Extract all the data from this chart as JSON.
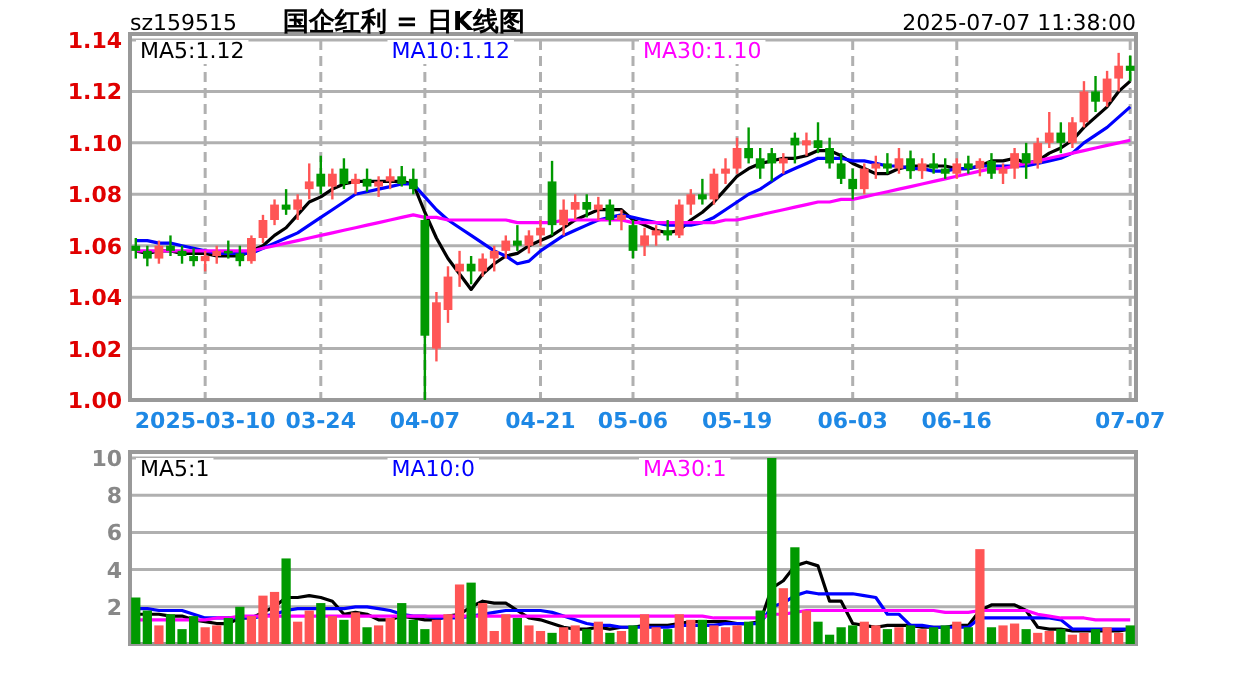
{
  "chart_data": [
    {
      "type": "candlestick",
      "title": "国企红利 = 日K线图",
      "subtitle": "sz159515",
      "annotations": [
        "2025-07-07 11:38:00"
      ],
      "categories": [
        null,
        null,
        null,
        null,
        null,
        null,
        "2025-03-10",
        null,
        null,
        null,
        null,
        null,
        null,
        null,
        null,
        null,
        "03-24",
        null,
        null,
        null,
        null,
        null,
        null,
        null,
        null,
        "04-07",
        null,
        null,
        null,
        null,
        null,
        null,
        null,
        null,
        null,
        "04-21",
        null,
        null,
        null,
        null,
        null,
        null,
        null,
        "05-06",
        null,
        null,
        null,
        null,
        null,
        null,
        null,
        null,
        "05-19",
        null,
        null,
        null,
        null,
        null,
        null,
        null,
        null,
        null,
        "06-03",
        null,
        null,
        null,
        null,
        null,
        null,
        null,
        null,
        "06-16",
        null,
        null,
        null,
        null,
        null,
        null,
        null,
        null,
        null,
        null,
        null,
        null,
        null,
        null,
        "07-07"
      ],
      "ohlc": [
        [
          1.06,
          1.063,
          1.055,
          1.058
        ],
        [
          1.058,
          1.06,
          1.052,
          1.055
        ],
        [
          1.055,
          1.062,
          1.053,
          1.06
        ],
        [
          1.06,
          1.064,
          1.056,
          1.058
        ],
        [
          1.058,
          1.06,
          1.053,
          1.056
        ],
        [
          1.056,
          1.059,
          1.052,
          1.054
        ],
        [
          1.054,
          1.058,
          1.05,
          1.056
        ],
        [
          1.056,
          1.06,
          1.053,
          1.058
        ],
        [
          1.058,
          1.062,
          1.055,
          1.057
        ],
        [
          1.057,
          1.06,
          1.052,
          1.054
        ],
        [
          1.054,
          1.064,
          1.053,
          1.063
        ],
        [
          1.063,
          1.072,
          1.061,
          1.07
        ],
        [
          1.07,
          1.078,
          1.068,
          1.076
        ],
        [
          1.076,
          1.082,
          1.072,
          1.074
        ],
        [
          1.074,
          1.08,
          1.07,
          1.078
        ],
        [
          1.082,
          1.092,
          1.078,
          1.085
        ],
        [
          1.088,
          1.095,
          1.08,
          1.083
        ],
        [
          1.083,
          1.09,
          1.078,
          1.088
        ],
        [
          1.09,
          1.094,
          1.082,
          1.084
        ],
        [
          1.084,
          1.088,
          1.08,
          1.086
        ],
        [
          1.086,
          1.09,
          1.081,
          1.083
        ],
        [
          1.083,
          1.087,
          1.079,
          1.085
        ],
        [
          1.085,
          1.09,
          1.082,
          1.087
        ],
        [
          1.087,
          1.091,
          1.083,
          1.084
        ],
        [
          1.086,
          1.09,
          1.08,
          1.082
        ],
        [
          1.07,
          1.072,
          1.0,
          1.025
        ],
        [
          1.02,
          1.042,
          1.015,
          1.038
        ],
        [
          1.035,
          1.052,
          1.03,
          1.048
        ],
        [
          1.05,
          1.058,
          1.044,
          1.053
        ],
        [
          1.053,
          1.056,
          1.045,
          1.05
        ],
        [
          1.05,
          1.057,
          1.048,
          1.055
        ],
        [
          1.055,
          1.06,
          1.05,
          1.058
        ],
        [
          1.058,
          1.064,
          1.055,
          1.062
        ],
        [
          1.062,
          1.068,
          1.058,
          1.06
        ],
        [
          1.06,
          1.066,
          1.057,
          1.064
        ],
        [
          1.064,
          1.07,
          1.06,
          1.067
        ],
        [
          1.085,
          1.093,
          1.064,
          1.068
        ],
        [
          1.068,
          1.078,
          1.064,
          1.074
        ],
        [
          1.074,
          1.08,
          1.07,
          1.077
        ],
        [
          1.077,
          1.08,
          1.071,
          1.074
        ],
        [
          1.074,
          1.079,
          1.07,
          1.076
        ],
        [
          1.076,
          1.078,
          1.068,
          1.07
        ],
        [
          1.07,
          1.074,
          1.066,
          1.072
        ],
        [
          1.068,
          1.07,
          1.055,
          1.058
        ],
        [
          1.06,
          1.067,
          1.056,
          1.064
        ],
        [
          1.064,
          1.068,
          1.06,
          1.066
        ],
        [
          1.066,
          1.07,
          1.062,
          1.064
        ],
        [
          1.064,
          1.078,
          1.063,
          1.076
        ],
        [
          1.076,
          1.082,
          1.072,
          1.08
        ],
        [
          1.08,
          1.086,
          1.076,
          1.078
        ],
        [
          1.078,
          1.09,
          1.076,
          1.088
        ],
        [
          1.088,
          1.094,
          1.084,
          1.09
        ],
        [
          1.09,
          1.102,
          1.088,
          1.098
        ],
        [
          1.098,
          1.106,
          1.092,
          1.094
        ],
        [
          1.094,
          1.098,
          1.086,
          1.09
        ],
        [
          1.096,
          1.098,
          1.085,
          1.092
        ],
        [
          1.092,
          1.096,
          1.088,
          1.094
        ],
        [
          1.102,
          1.104,
          1.092,
          1.099
        ],
        [
          1.099,
          1.104,
          1.095,
          1.101
        ],
        [
          1.101,
          1.108,
          1.096,
          1.098
        ],
        [
          1.098,
          1.102,
          1.09,
          1.092
        ],
        [
          1.092,
          1.096,
          1.084,
          1.086
        ],
        [
          1.086,
          1.09,
          1.078,
          1.082
        ],
        [
          1.082,
          1.092,
          1.08,
          1.09
        ],
        [
          1.09,
          1.095,
          1.086,
          1.092
        ],
        [
          1.092,
          1.096,
          1.088,
          1.09
        ],
        [
          1.09,
          1.098,
          1.088,
          1.094
        ],
        [
          1.094,
          1.097,
          1.086,
          1.089
        ],
        [
          1.089,
          1.094,
          1.086,
          1.092
        ],
        [
          1.092,
          1.096,
          1.088,
          1.09
        ],
        [
          1.09,
          1.094,
          1.086,
          1.088
        ],
        [
          1.088,
          1.094,
          1.086,
          1.092
        ],
        [
          1.092,
          1.095,
          1.088,
          1.09
        ],
        [
          1.09,
          1.094,
          1.087,
          1.093
        ],
        [
          1.093,
          1.096,
          1.086,
          1.088
        ],
        [
          1.088,
          1.092,
          1.084,
          1.09
        ],
        [
          1.09,
          1.098,
          1.086,
          1.096
        ],
        [
          1.096,
          1.1,
          1.086,
          1.092
        ],
        [
          1.092,
          1.102,
          1.09,
          1.1
        ],
        [
          1.1,
          1.112,
          1.098,
          1.104
        ],
        [
          1.104,
          1.108,
          1.096,
          1.1
        ],
        [
          1.1,
          1.11,
          1.098,
          1.108
        ],
        [
          1.108,
          1.124,
          1.106,
          1.12
        ],
        [
          1.12,
          1.126,
          1.112,
          1.116
        ],
        [
          1.116,
          1.128,
          1.114,
          1.125
        ],
        [
          1.125,
          1.135,
          1.12,
          1.13
        ],
        [
          1.13,
          1.134,
          1.124,
          1.128
        ]
      ],
      "colors": [
        "#009900",
        "#009900",
        "#ff5555",
        "#009900",
        "#009900",
        "#009900",
        "#ff5555",
        "#ff5555",
        "#009900",
        "#009900",
        "#ff5555",
        "#ff5555",
        "#ff5555",
        "#009900",
        "#ff5555",
        "#ff5555",
        "#009900",
        "#ff5555",
        "#009900",
        "#ff5555",
        "#009900",
        "#ff5555",
        "#ff5555",
        "#009900",
        "#009900",
        "#009900",
        "#ff5555",
        "#ff5555",
        "#ff5555",
        "#009900",
        "#ff5555",
        "#ff5555",
        "#ff5555",
        "#009900",
        "#ff5555",
        "#ff5555",
        "#009900",
        "#ff5555",
        "#ff5555",
        "#009900",
        "#ff5555",
        "#009900",
        "#ff5555",
        "#009900",
        "#ff5555",
        "#ff5555",
        "#009900",
        "#ff5555",
        "#ff5555",
        "#009900",
        "#ff5555",
        "#ff5555",
        "#ff5555",
        "#009900",
        "#009900",
        "#009900",
        "#ff5555",
        "#009900",
        "#ff5555",
        "#009900",
        "#009900",
        "#009900",
        "#009900",
        "#ff5555",
        "#ff5555",
        "#009900",
        "#ff5555",
        "#009900",
        "#ff5555",
        "#009900",
        "#009900",
        "#ff5555",
        "#009900",
        "#ff5555",
        "#009900",
        "#ff5555",
        "#ff5555",
        "#009900",
        "#ff5555",
        "#ff5555",
        "#009900",
        "#ff5555",
        "#ff5555",
        "#009900",
        "#ff5555",
        "#ff5555",
        "#009900"
      ],
      "series": [
        {
          "type": "line",
          "name": "MA5:1.12",
          "color": "#000000",
          "values": [
            1.058,
            1.057,
            1.058,
            1.058,
            1.057,
            1.057,
            1.057,
            1.056,
            1.056,
            1.056,
            1.058,
            1.06,
            1.064,
            1.067,
            1.072,
            1.077,
            1.079,
            1.082,
            1.084,
            1.085,
            1.085,
            1.085,
            1.085,
            1.085,
            1.084,
            1.073,
            1.063,
            1.055,
            1.049,
            1.043,
            1.049,
            1.053,
            1.056,
            1.057,
            1.06,
            1.062,
            1.064,
            1.067,
            1.07,
            1.072,
            1.074,
            1.074,
            1.074,
            1.07,
            1.068,
            1.066,
            1.065,
            1.066,
            1.07,
            1.073,
            1.077,
            1.082,
            1.087,
            1.09,
            1.092,
            1.093,
            1.094,
            1.094,
            1.095,
            1.097,
            1.097,
            1.095,
            1.092,
            1.09,
            1.088,
            1.088,
            1.09,
            1.091,
            1.091,
            1.091,
            1.091,
            1.09,
            1.09,
            1.091,
            1.093,
            1.093,
            1.094,
            1.092,
            1.093,
            1.096,
            1.098,
            1.101,
            1.106,
            1.11,
            1.114,
            1.12,
            1.124
          ]
        },
        {
          "type": "line",
          "name": "MA10:1.12",
          "color": "#0000ff",
          "values": [
            1.062,
            1.062,
            1.061,
            1.061,
            1.06,
            1.059,
            1.058,
            1.057,
            1.057,
            1.057,
            1.057,
            1.059,
            1.061,
            1.063,
            1.065,
            1.068,
            1.071,
            1.074,
            1.077,
            1.08,
            1.081,
            1.082,
            1.083,
            1.084,
            1.084,
            1.079,
            1.074,
            1.07,
            1.067,
            1.064,
            1.061,
            1.058,
            1.056,
            1.053,
            1.054,
            1.058,
            1.061,
            1.064,
            1.066,
            1.068,
            1.07,
            1.071,
            1.072,
            1.071,
            1.07,
            1.069,
            1.068,
            1.068,
            1.068,
            1.069,
            1.071,
            1.074,
            1.077,
            1.08,
            1.082,
            1.085,
            1.088,
            1.09,
            1.092,
            1.094,
            1.094,
            1.094,
            1.093,
            1.093,
            1.092,
            1.091,
            1.091,
            1.09,
            1.09,
            1.089,
            1.089,
            1.09,
            1.09,
            1.091,
            1.091,
            1.091,
            1.091,
            1.091,
            1.092,
            1.093,
            1.094,
            1.096,
            1.1,
            1.103,
            1.106,
            1.11,
            1.114
          ]
        },
        {
          "type": "line",
          "name": "MA30:1.10",
          "color": "#ff00ff",
          "values": [
            1.058,
            1.058,
            1.058,
            1.058,
            1.058,
            1.058,
            1.058,
            1.058,
            1.058,
            1.058,
            1.058,
            1.059,
            1.06,
            1.061,
            1.062,
            1.063,
            1.064,
            1.065,
            1.066,
            1.067,
            1.068,
            1.069,
            1.07,
            1.071,
            1.072,
            1.071,
            1.071,
            1.07,
            1.07,
            1.07,
            1.07,
            1.07,
            1.07,
            1.069,
            1.069,
            1.069,
            1.069,
            1.07,
            1.07,
            1.07,
            1.07,
            1.07,
            1.07,
            1.069,
            1.069,
            1.069,
            1.069,
            1.069,
            1.069,
            1.069,
            1.069,
            1.07,
            1.07,
            1.071,
            1.072,
            1.073,
            1.074,
            1.075,
            1.076,
            1.077,
            1.077,
            1.078,
            1.078,
            1.079,
            1.08,
            1.081,
            1.082,
            1.083,
            1.084,
            1.085,
            1.086,
            1.087,
            1.088,
            1.089,
            1.09,
            1.09,
            1.091,
            1.092,
            1.093,
            1.094,
            1.095,
            1.096,
            1.097,
            1.098,
            1.099,
            1.1,
            1.101
          ]
        }
      ],
      "ylim": [
        1.0,
        1.14
      ],
      "yticks": [
        {
          "value": 1.0,
          "label": "1.00"
        },
        {
          "value": 1.02,
          "label": "1.02"
        },
        {
          "value": 1.04,
          "label": "1.04"
        },
        {
          "value": 1.06,
          "label": "1.06"
        },
        {
          "value": 1.08,
          "label": "1.08"
        },
        {
          "value": 1.1,
          "label": "1.10"
        },
        {
          "value": 1.12,
          "label": "1.12"
        },
        {
          "value": 1.14,
          "label": "1.14"
        }
      ],
      "grid": true,
      "legend": "top"
    },
    {
      "type": "bar",
      "categories": [
        null,
        null,
        null,
        null,
        null,
        null,
        null,
        null,
        null,
        null,
        null,
        null,
        null,
        null,
        null,
        null,
        null,
        null,
        null,
        null,
        null,
        null,
        null,
        null,
        null,
        null,
        null,
        null,
        null,
        null,
        null,
        null,
        null,
        null,
        null,
        null,
        null,
        null,
        null,
        null,
        null,
        null,
        null,
        null,
        null,
        null,
        null,
        null,
        null,
        null,
        null,
        null,
        null,
        null,
        null,
        null,
        null,
        null,
        null,
        null,
        null,
        null,
        null,
        null,
        null,
        null,
        null,
        null,
        null,
        null,
        null,
        null,
        null,
        null,
        null,
        null,
        null,
        null,
        null,
        null,
        null,
        null,
        null,
        null,
        null,
        null,
        null
      ],
      "series": [
        {
          "type": "bar",
          "values": [
            2.5,
            1.8,
            1.0,
            1.6,
            0.8,
            1.5,
            0.9,
            1.0,
            1.4,
            2.0,
            1.5,
            2.6,
            2.8,
            4.6,
            1.2,
            1.8,
            2.2,
            1.5,
            1.3,
            1.7,
            0.9,
            1.0,
            1.4,
            2.2,
            1.3,
            0.8,
            1.3,
            1.6,
            3.2,
            3.3,
            2.2,
            0.7,
            1.6,
            1.4,
            1.0,
            0.7,
            0.6,
            0.9,
            1.0,
            0.8,
            1.2,
            0.6,
            0.7,
            1.0,
            1.6,
            0.9,
            0.8,
            1.6,
            1.3,
            1.3,
            1.0,
            0.9,
            1.0,
            1.2,
            1.8,
            10.0,
            3.0,
            5.2,
            1.8,
            1.2,
            0.5,
            0.9,
            1.0,
            1.2,
            1.0,
            0.8,
            0.9,
            1.0,
            0.8,
            0.9,
            1.0,
            1.2,
            0.9,
            5.1,
            0.9,
            1.0,
            1.1,
            0.8,
            0.6,
            0.7,
            0.8,
            0.5,
            0.6,
            0.8,
            0.9,
            0.6,
            1.0
          ],
          "colors": [
            "#009900",
            "#009900",
            "#ff5555",
            "#009900",
            "#009900",
            "#009900",
            "#ff5555",
            "#ff5555",
            "#009900",
            "#009900",
            "#ff5555",
            "#ff5555",
            "#ff5555",
            "#009900",
            "#ff5555",
            "#ff5555",
            "#009900",
            "#ff5555",
            "#009900",
            "#ff5555",
            "#009900",
            "#ff5555",
            "#ff5555",
            "#009900",
            "#009900",
            "#009900",
            "#ff5555",
            "#ff5555",
            "#ff5555",
            "#009900",
            "#ff5555",
            "#ff5555",
            "#ff5555",
            "#009900",
            "#ff5555",
            "#ff5555",
            "#009900",
            "#ff5555",
            "#ff5555",
            "#009900",
            "#ff5555",
            "#009900",
            "#ff5555",
            "#009900",
            "#ff5555",
            "#ff5555",
            "#009900",
            "#ff5555",
            "#ff5555",
            "#009900",
            "#ff5555",
            "#ff5555",
            "#ff5555",
            "#009900",
            "#009900",
            "#009900",
            "#ff5555",
            "#009900",
            "#ff5555",
            "#009900",
            "#009900",
            "#009900",
            "#009900",
            "#ff5555",
            "#ff5555",
            "#009900",
            "#ff5555",
            "#009900",
            "#ff5555",
            "#009900",
            "#009900",
            "#ff5555",
            "#009900",
            "#ff5555",
            "#009900",
            "#ff5555",
            "#ff5555",
            "#009900",
            "#ff5555",
            "#ff5555",
            "#009900",
            "#ff5555",
            "#ff5555",
            "#009900",
            "#ff5555",
            "#ff5555",
            "#009900"
          ]
        },
        {
          "type": "line",
          "name": "MA5:1",
          "color": "#000000",
          "values": [
            1.6,
            1.6,
            1.6,
            1.5,
            1.5,
            1.3,
            1.2,
            1.1,
            1.1,
            1.4,
            1.4,
            1.7,
            2.0,
            2.5,
            2.5,
            2.6,
            2.5,
            2.3,
            1.6,
            1.7,
            1.6,
            1.3,
            1.3,
            1.5,
            1.4,
            1.3,
            1.3,
            1.5,
            1.6,
            2.0,
            2.3,
            2.2,
            2.2,
            1.8,
            1.4,
            1.3,
            1.1,
            0.9,
            0.8,
            0.8,
            0.9,
            0.8,
            0.9,
            0.9,
            1.0,
            1.0,
            1.0,
            1.1,
            1.2,
            1.2,
            1.2,
            1.2,
            1.1,
            1.1,
            1.2,
            3.0,
            3.4,
            4.2,
            4.4,
            4.2,
            2.3,
            2.3,
            1.1,
            1.0,
            0.9,
            1.0,
            1.0,
            1.0,
            0.9,
            0.9,
            0.9,
            1.0,
            1.0,
            1.8,
            2.1,
            2.1,
            2.1,
            1.8,
            0.9,
            0.8,
            0.8,
            0.7,
            0.7,
            0.7,
            0.7,
            0.7,
            0.8
          ]
        },
        {
          "type": "line",
          "name": "MA10:0",
          "color": "#0000ff",
          "values": [
            1.9,
            1.9,
            1.8,
            1.8,
            1.8,
            1.6,
            1.4,
            1.4,
            1.4,
            1.4,
            1.4,
            1.5,
            1.6,
            1.8,
            1.9,
            1.9,
            1.9,
            1.9,
            1.9,
            2.0,
            2.0,
            1.9,
            1.8,
            1.6,
            1.5,
            1.5,
            1.4,
            1.4,
            1.4,
            1.5,
            1.6,
            1.7,
            1.8,
            1.8,
            1.8,
            1.8,
            1.7,
            1.5,
            1.3,
            1.1,
            1.0,
            1.0,
            0.9,
            0.9,
            0.9,
            0.9,
            0.9,
            1.0,
            1.0,
            1.0,
            1.0,
            1.1,
            1.1,
            1.1,
            1.1,
            2.0,
            2.2,
            2.6,
            2.8,
            2.7,
            2.7,
            2.7,
            2.7,
            2.6,
            2.5,
            1.6,
            1.6,
            1.0,
            1.0,
            0.9,
            0.9,
            0.9,
            0.9,
            1.4,
            1.4,
            1.4,
            1.4,
            1.4,
            1.4,
            1.4,
            1.3,
            0.8,
            0.8,
            0.8,
            0.8,
            0.8,
            0.8
          ]
        },
        {
          "type": "line",
          "name": "MA30:1",
          "color": "#ff00ff",
          "values": [
            1.3,
            1.3,
            1.3,
            1.3,
            1.3,
            1.3,
            1.3,
            1.4,
            1.4,
            1.5,
            1.5,
            1.5,
            1.5,
            1.5,
            1.5,
            1.5,
            1.5,
            1.5,
            1.5,
            1.5,
            1.5,
            1.5,
            1.5,
            1.5,
            1.5,
            1.5,
            1.5,
            1.5,
            1.5,
            1.5,
            1.5,
            1.5,
            1.5,
            1.5,
            1.5,
            1.5,
            1.5,
            1.5,
            1.5,
            1.5,
            1.5,
            1.5,
            1.5,
            1.5,
            1.5,
            1.5,
            1.5,
            1.5,
            1.5,
            1.5,
            1.4,
            1.4,
            1.4,
            1.4,
            1.4,
            1.6,
            1.6,
            1.7,
            1.8,
            1.8,
            1.8,
            1.8,
            1.8,
            1.8,
            1.8,
            1.8,
            1.8,
            1.8,
            1.8,
            1.8,
            1.7,
            1.7,
            1.7,
            1.8,
            1.8,
            1.8,
            1.8,
            1.8,
            1.6,
            1.5,
            1.4,
            1.4,
            1.4,
            1.3,
            1.3,
            1.3,
            1.3
          ]
        }
      ],
      "ylim": [
        0,
        10
      ],
      "yticks": [
        2,
        4,
        6,
        8,
        10
      ],
      "grid": true,
      "legend": "top",
      "tick_labels": "y"
    }
  ]
}
